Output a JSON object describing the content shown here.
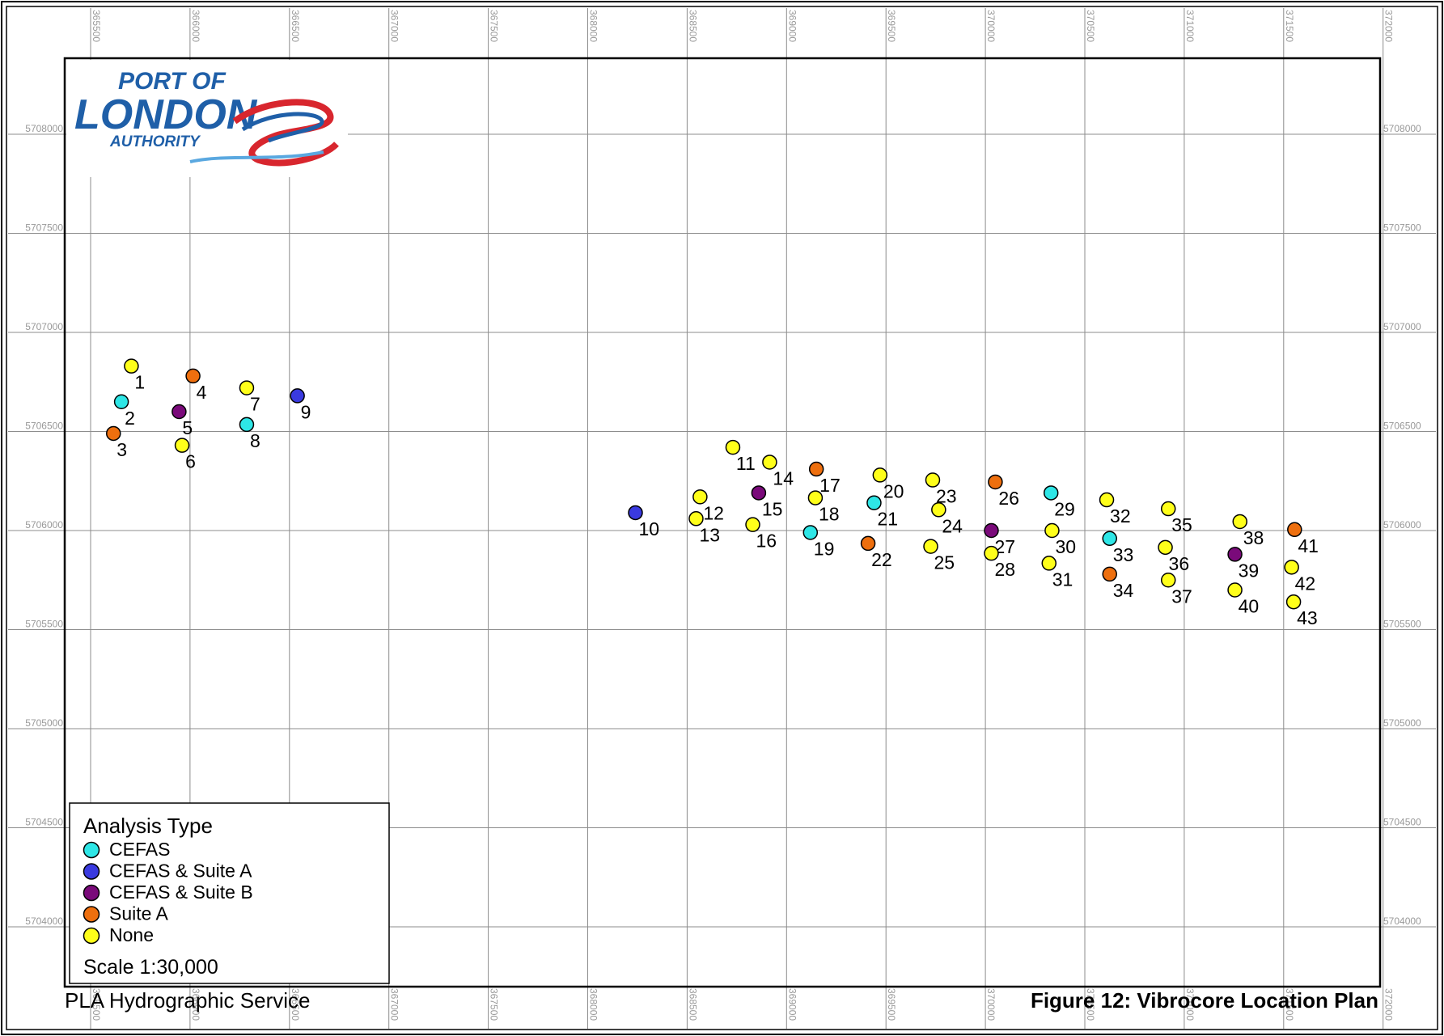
{
  "colors": {
    "CEFAS": "#2ee6e6",
    "CEFAS & Suite A": "#3a3ae0",
    "CEFAS & Suite B": "#7a0a7a",
    "Suite A": "#ee6f0e",
    "None": "#ffff1a"
  },
  "logo": {
    "line1": "PORT OF",
    "line2": "LONDON",
    "line3": "AUTHORITY"
  },
  "legend": {
    "title": "Analysis Type",
    "items": [
      {
        "label": "CEFAS",
        "type": "CEFAS"
      },
      {
        "label": "CEFAS & Suite A",
        "type": "CEFAS & Suite A"
      },
      {
        "label": "CEFAS & Suite B",
        "type": "CEFAS & Suite B"
      },
      {
        "label": "Suite A",
        "type": "Suite A"
      },
      {
        "label": "None",
        "type": "None"
      }
    ],
    "scale": "Scale  1:30,000"
  },
  "footer": {
    "left": "PLA Hydrographic Service",
    "right": "Figure 12:  Vibrocore Location Plan"
  },
  "axes": {
    "easting_ticks": [
      "365500",
      "366000",
      "366500",
      "367000",
      "367500",
      "368000",
      "368500",
      "369000",
      "369500",
      "370000",
      "370500",
      "371000",
      "371500",
      "372000"
    ],
    "northing_ticks": [
      "5708000",
      "5707500",
      "5707000",
      "5706500",
      "5706000",
      "5705500",
      "5705000",
      "5704500",
      "5704000"
    ]
  },
  "map_data": {
    "easting_range": [
      365500,
      372000
    ],
    "northing_range": [
      5704000,
      5708000
    ],
    "grid": true,
    "points": [
      {
        "id": "1",
        "e": 365705,
        "n": 5706830,
        "type": "None"
      },
      {
        "id": "2",
        "e": 365655,
        "n": 5706650,
        "type": "CEFAS"
      },
      {
        "id": "3",
        "e": 365615,
        "n": 5706490,
        "type": "Suite A"
      },
      {
        "id": "4",
        "e": 366015,
        "n": 5706780,
        "type": "Suite A"
      },
      {
        "id": "5",
        "e": 365945,
        "n": 5706600,
        "type": "CEFAS & Suite B"
      },
      {
        "id": "6",
        "e": 365960,
        "n": 5706430,
        "type": "None"
      },
      {
        "id": "7",
        "e": 366285,
        "n": 5706720,
        "type": "None"
      },
      {
        "id": "8",
        "e": 366285,
        "n": 5706535,
        "type": "CEFAS"
      },
      {
        "id": "9",
        "e": 366540,
        "n": 5706680,
        "type": "CEFAS & Suite A"
      },
      {
        "id": "10",
        "e": 368240,
        "n": 5706090,
        "type": "CEFAS & Suite A"
      },
      {
        "id": "11",
        "e": 368730,
        "n": 5706420,
        "type": "None"
      },
      {
        "id": "12",
        "e": 368565,
        "n": 5706170,
        "type": "None"
      },
      {
        "id": "13",
        "e": 368545,
        "n": 5706060,
        "type": "None"
      },
      {
        "id": "14",
        "e": 368915,
        "n": 5706345,
        "type": "None"
      },
      {
        "id": "15",
        "e": 368860,
        "n": 5706190,
        "type": "CEFAS & Suite B"
      },
      {
        "id": "16",
        "e": 368830,
        "n": 5706030,
        "type": "None"
      },
      {
        "id": "17",
        "e": 369150,
        "n": 5706310,
        "type": "Suite A"
      },
      {
        "id": "18",
        "e": 369145,
        "n": 5706165,
        "type": "None"
      },
      {
        "id": "19",
        "e": 369120,
        "n": 5705990,
        "type": "CEFAS"
      },
      {
        "id": "20",
        "e": 369470,
        "n": 5706280,
        "type": "None"
      },
      {
        "id": "21",
        "e": 369440,
        "n": 5706140,
        "type": "CEFAS"
      },
      {
        "id": "22",
        "e": 369410,
        "n": 5705935,
        "type": "Suite A"
      },
      {
        "id": "23",
        "e": 369735,
        "n": 5706255,
        "type": "None"
      },
      {
        "id": "24",
        "e": 369765,
        "n": 5706105,
        "type": "None"
      },
      {
        "id": "25",
        "e": 369725,
        "n": 5705920,
        "type": "None"
      },
      {
        "id": "26",
        "e": 370050,
        "n": 5706245,
        "type": "Suite A"
      },
      {
        "id": "27",
        "e": 370030,
        "n": 5706000,
        "type": "CEFAS & Suite B"
      },
      {
        "id": "28",
        "e": 370030,
        "n": 5705885,
        "type": "None"
      },
      {
        "id": "29",
        "e": 370330,
        "n": 5706190,
        "type": "CEFAS"
      },
      {
        "id": "30",
        "e": 370335,
        "n": 5706000,
        "type": "None"
      },
      {
        "id": "31",
        "e": 370320,
        "n": 5705835,
        "type": "None"
      },
      {
        "id": "32",
        "e": 370610,
        "n": 5706155,
        "type": "None"
      },
      {
        "id": "33",
        "e": 370625,
        "n": 5705960,
        "type": "CEFAS"
      },
      {
        "id": "34",
        "e": 370625,
        "n": 5705780,
        "type": "Suite A"
      },
      {
        "id": "35",
        "e": 370920,
        "n": 5706110,
        "type": "None"
      },
      {
        "id": "36",
        "e": 370905,
        "n": 5705915,
        "type": "None"
      },
      {
        "id": "37",
        "e": 370920,
        "n": 5705750,
        "type": "None"
      },
      {
        "id": "38",
        "e": 371280,
        "n": 5706045,
        "type": "None"
      },
      {
        "id": "39",
        "e": 371255,
        "n": 5705880,
        "type": "CEFAS & Suite B"
      },
      {
        "id": "40",
        "e": 371255,
        "n": 5705700,
        "type": "None"
      },
      {
        "id": "41",
        "e": 371555,
        "n": 5706005,
        "type": "Suite A"
      },
      {
        "id": "42",
        "e": 371540,
        "n": 5705815,
        "type": "None"
      },
      {
        "id": "43",
        "e": 371550,
        "n": 5705640,
        "type": "None"
      }
    ]
  }
}
